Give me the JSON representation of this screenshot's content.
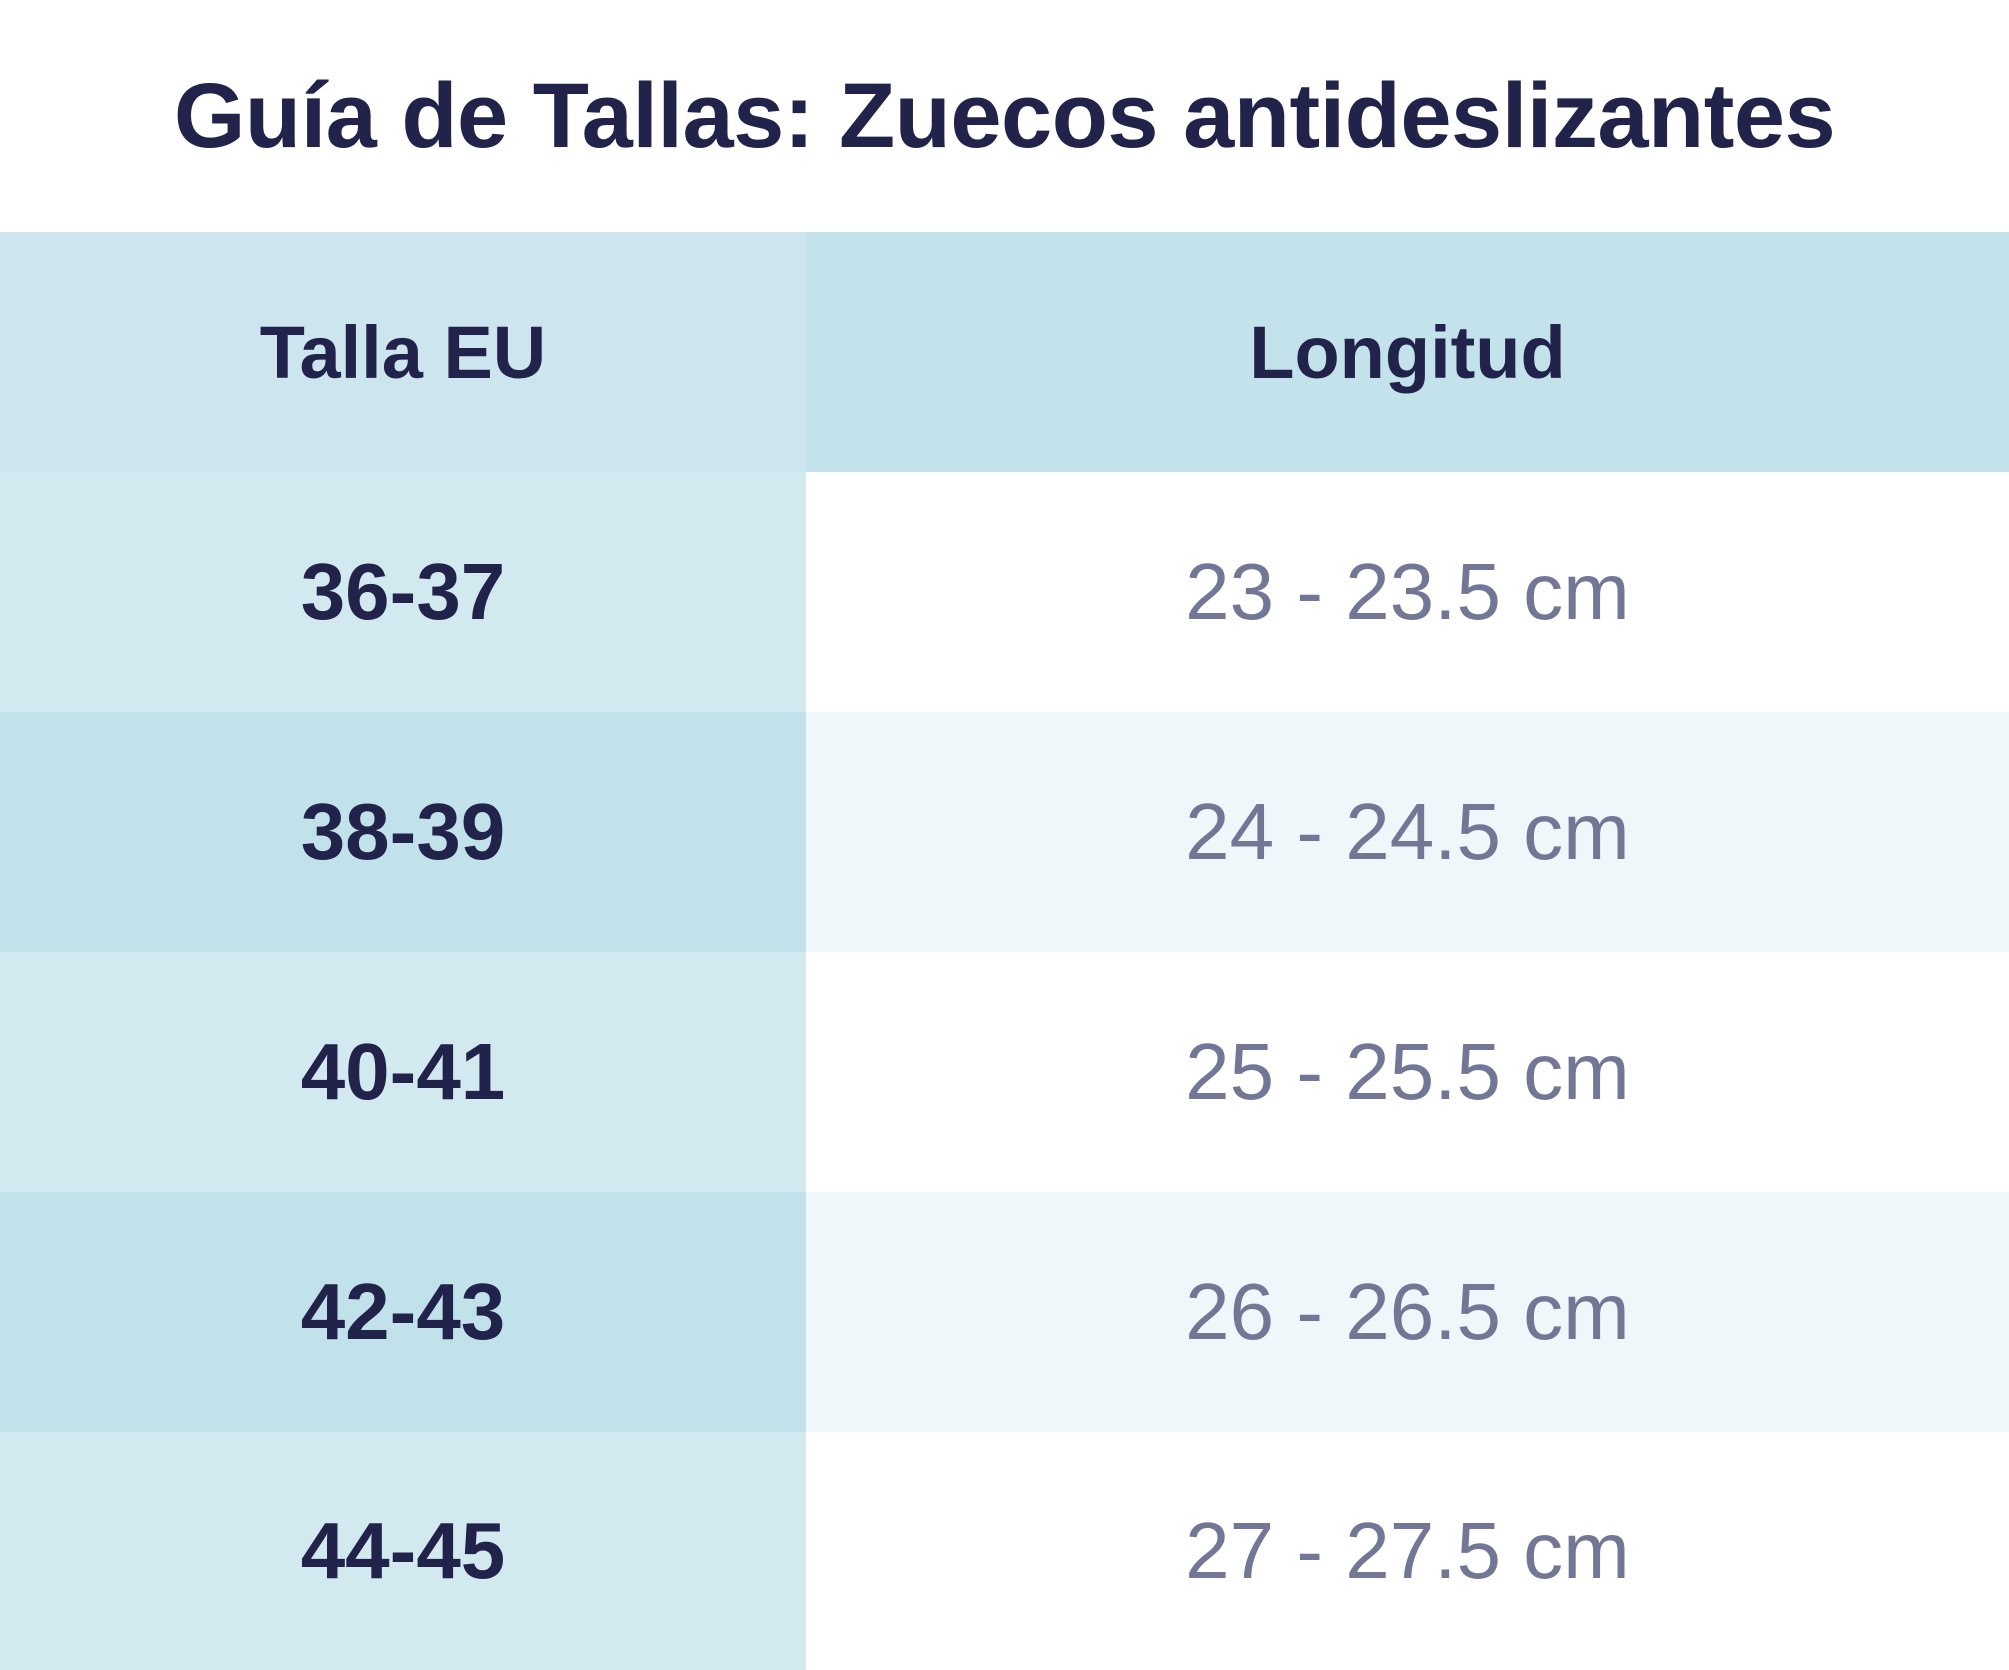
{
  "title": "Guía de Tallas: Zuecos antideslizantes",
  "table": {
    "headers": [
      "Talla EU",
      "Longitud"
    ],
    "rows": [
      {
        "size": "36-37",
        "length": "23 - 23.5 cm"
      },
      {
        "size": "38-39",
        "length": "24 - 24.5 cm"
      },
      {
        "size": "40-41",
        "length": "25 - 25.5 cm"
      },
      {
        "size": "42-43",
        "length": "26 - 26.5 cm"
      },
      {
        "size": "44-45",
        "length": "27 - 27.5 cm"
      }
    ]
  },
  "colors": {
    "text_dark": "#22234a",
    "text_muted": "#737796",
    "header_left": "#cce5ee",
    "header_right": "#c3e2eb",
    "column_light": "#d2e9f0",
    "column_dark": "#c2e2eb",
    "row_white": "#ffffff",
    "row_tint": "#eef7f9"
  }
}
